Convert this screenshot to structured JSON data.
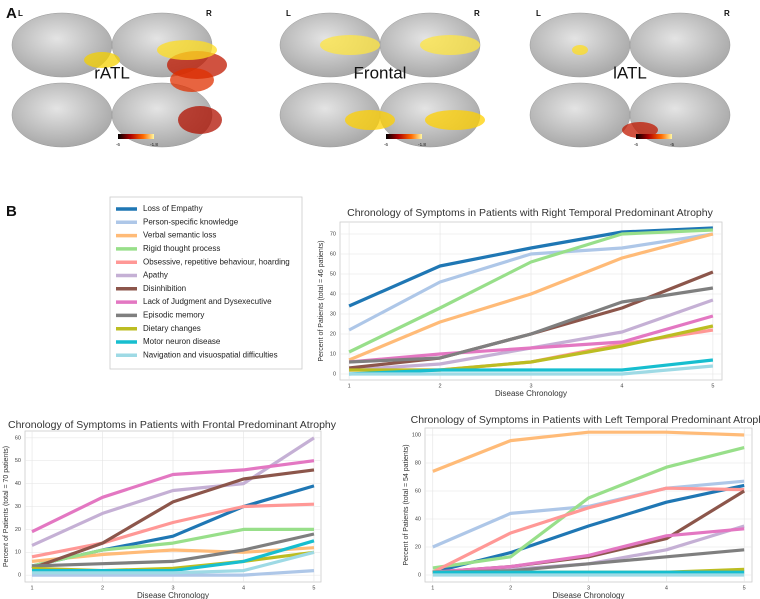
{
  "panel_a": {
    "label": "A",
    "groups": [
      {
        "left": "L",
        "right": "R",
        "name": "rATL",
        "colorbar": [
          "-6",
          "-1.8"
        ]
      },
      {
        "left": "L",
        "right": "R",
        "name": "Frontal",
        "colorbar": [
          "-6",
          "-1.8"
        ]
      },
      {
        "left": "L",
        "right": "R",
        "name": "lATL",
        "colorbar": [
          "-6",
          "-5"
        ]
      }
    ]
  },
  "panel_b": {
    "label": "B"
  },
  "chart_data": [
    {
      "type": "line",
      "title": "Chronology of Symptoms in Patients with Right Temporal Predominant Atrophy",
      "x_label": "Disease Chronology",
      "y_label": "Percent of Patients (total = 46 patients)",
      "x": [
        1,
        2,
        3,
        4,
        5
      ],
      "xlim": [
        0.9,
        5.1
      ],
      "xticks": [
        1,
        2,
        3,
        4,
        5
      ],
      "ylim": [
        -3,
        76
      ],
      "yticks": [
        0,
        10,
        20,
        30,
        40,
        50,
        60,
        70
      ],
      "grid": true,
      "series": [
        {
          "name": "Loss of Empathy",
          "color": "#1f77b4",
          "values": [
            34,
            54,
            63,
            71,
            73
          ]
        },
        {
          "name": "Person-specific knowledge",
          "color": "#aec7e8",
          "values": [
            22,
            46,
            60,
            63,
            70
          ]
        },
        {
          "name": "Verbal semantic loss",
          "color": "#ffbb78",
          "values": [
            7,
            26,
            40,
            58,
            70
          ]
        },
        {
          "name": "Rigid thought process",
          "color": "#98df8a",
          "values": [
            11,
            33,
            56,
            70,
            72
          ]
        },
        {
          "name": "Obsessive, repetitive behaviour, hoarding",
          "color": "#ff9896",
          "values": [
            2,
            2,
            6,
            15,
            22
          ]
        },
        {
          "name": "Apathy",
          "color": "#c5b0d5",
          "values": [
            2,
            5,
            13,
            21,
            37
          ]
        },
        {
          "name": "Disinhibition",
          "color": "#8c564b",
          "values": [
            3,
            8,
            20,
            33,
            51
          ]
        },
        {
          "name": "Lack of Judgment and Dysexecutive",
          "color": "#e377c2",
          "values": [
            6,
            10,
            13,
            16,
            29
          ]
        },
        {
          "name": "Episodic memory",
          "color": "#7f7f7f",
          "values": [
            6,
            8,
            20,
            36,
            43
          ]
        },
        {
          "name": "Dietary changes",
          "color": "#bcbd22",
          "values": [
            2,
            2,
            6,
            14,
            24
          ]
        },
        {
          "name": "Motor neuron disease",
          "color": "#17becf",
          "values": [
            0,
            2,
            2,
            2,
            7
          ]
        },
        {
          "name": "Navigation and visuospatial difficulties",
          "color": "#9edae5",
          "values": [
            0,
            0,
            0,
            0,
            4
          ]
        }
      ]
    },
    {
      "type": "line",
      "title": "Chronology of Symptoms in Patients with Frontal Predominant Atrophy",
      "x_label": "Disease Chronology",
      "y_label": "Percent of Patients (total = 70 patients)",
      "x": [
        1,
        2,
        3,
        4,
        5
      ],
      "xlim": [
        0.9,
        5.1
      ],
      "xticks": [
        1,
        2,
        3,
        4,
        5
      ],
      "ylim": [
        -3,
        63
      ],
      "yticks": [
        0,
        10,
        20,
        30,
        40,
        50,
        60
      ],
      "grid": true,
      "series": [
        {
          "color": "#1f77b4",
          "values": [
            4,
            11,
            17,
            30,
            39
          ]
        },
        {
          "color": "#aec7e8",
          "values": [
            0,
            0,
            0,
            0,
            2
          ]
        },
        {
          "color": "#ffbb78",
          "values": [
            6,
            9,
            11,
            10,
            12
          ]
        },
        {
          "color": "#98df8a",
          "values": [
            4,
            11,
            14,
            20,
            20
          ]
        },
        {
          "color": "#ff9896",
          "values": [
            8,
            14,
            23,
            30,
            31
          ]
        },
        {
          "color": "#c5b0d5",
          "values": [
            13,
            27,
            37,
            40,
            60
          ]
        },
        {
          "color": "#8c564b",
          "values": [
            3,
            14,
            32,
            42,
            46
          ]
        },
        {
          "color": "#e377c2",
          "values": [
            19,
            34,
            44,
            46,
            50
          ]
        },
        {
          "color": "#7f7f7f",
          "values": [
            4,
            5,
            6,
            11,
            18
          ]
        },
        {
          "color": "#bcbd22",
          "values": [
            3,
            2,
            3,
            6,
            10
          ]
        },
        {
          "color": "#17becf",
          "values": [
            2,
            2,
            2,
            6,
            15
          ]
        },
        {
          "color": "#9edae5",
          "values": [
            1,
            1,
            1,
            2,
            10
          ]
        }
      ]
    },
    {
      "type": "line",
      "title": "Chronology of Symptoms in Patients with Left Temporal Predominant Atrophy",
      "x_label": "Disease Chronology",
      "y_label": "Percent of Patients (total = 54 patients)",
      "x": [
        1,
        2,
        3,
        4,
        5
      ],
      "xlim": [
        0.9,
        5.1
      ],
      "xticks": [
        1,
        2,
        3,
        4,
        5
      ],
      "ylim": [
        -5,
        105
      ],
      "yticks": [
        0,
        20,
        40,
        60,
        80,
        100
      ],
      "grid": true,
      "series": [
        {
          "color": "#1f77b4",
          "values": [
            2,
            16,
            35,
            52,
            64
          ]
        },
        {
          "color": "#aec7e8",
          "values": [
            20,
            44,
            49,
            62,
            67
          ]
        },
        {
          "color": "#ffbb78",
          "values": [
            74,
            96,
            102,
            102,
            100
          ]
        },
        {
          "color": "#98df8a",
          "values": [
            5,
            13,
            55,
            77,
            91
          ]
        },
        {
          "color": "#ff9896",
          "values": [
            2,
            30,
            48,
            62,
            61
          ]
        },
        {
          "color": "#c5b0d5",
          "values": [
            2,
            4,
            8,
            18,
            35
          ]
        },
        {
          "color": "#8c564b",
          "values": [
            2,
            6,
            13,
            26,
            60
          ]
        },
        {
          "color": "#e377c2",
          "values": [
            2,
            6,
            14,
            28,
            33
          ]
        },
        {
          "color": "#7f7f7f",
          "values": [
            2,
            3,
            8,
            13,
            18
          ]
        },
        {
          "color": "#bcbd22",
          "values": [
            2,
            2,
            2,
            2,
            4
          ]
        },
        {
          "color": "#17becf",
          "values": [
            2,
            2,
            2,
            2,
            2
          ]
        },
        {
          "color": "#9edae5",
          "values": [
            0,
            0,
            0,
            0,
            0
          ]
        }
      ]
    }
  ]
}
